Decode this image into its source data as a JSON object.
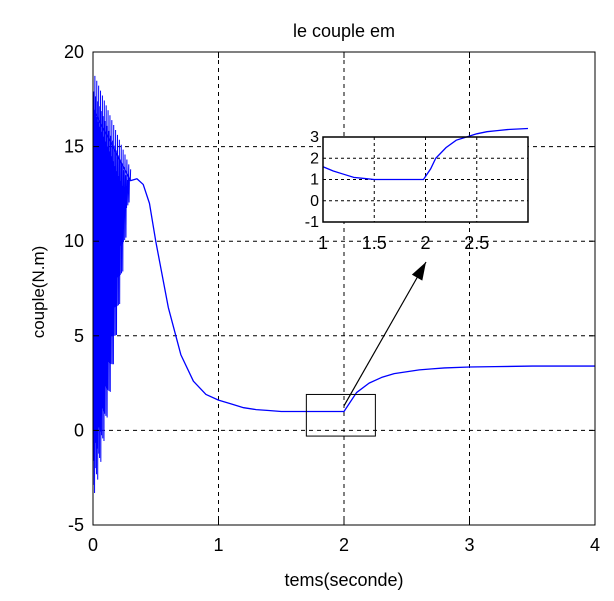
{
  "chart_data": {
    "type": "line",
    "title": "le couple em",
    "xlabel": "tems(seconde)",
    "ylabel": "couple(N.m)",
    "xlim": [
      0,
      4
    ],
    "ylim": [
      -5,
      20
    ],
    "x_ticks": [
      "0",
      "1",
      "2",
      "3",
      "4"
    ],
    "y_ticks": [
      "20",
      "15",
      "10",
      "5",
      "0",
      "-5"
    ],
    "grid": true,
    "line_color": "#0000ff",
    "series": [
      {
        "x": [
          0,
          0.3,
          0.35,
          0.4,
          0.45,
          0.5,
          0.6,
          0.7,
          0.8,
          0.9,
          1.0,
          1.1,
          1.2,
          1.3,
          1.4,
          1.5,
          1.6,
          1.7,
          1.8,
          1.9,
          2.0,
          2.05,
          2.1,
          2.2,
          2.3,
          2.4,
          2.5,
          2.6,
          2.7,
          2.8,
          3.0,
          3.2,
          3.5,
          4.0
        ],
        "y": [
          17.0,
          13.2,
          13.3,
          13.0,
          12.0,
          10.0,
          6.5,
          4.0,
          2.6,
          1.9,
          1.6,
          1.4,
          1.2,
          1.1,
          1.05,
          1.0,
          1.0,
          1.0,
          1.0,
          1.0,
          1.0,
          1.5,
          2.0,
          2.5,
          2.8,
          3.0,
          3.1,
          3.2,
          3.25,
          3.3,
          3.35,
          3.37,
          3.4,
          3.4
        ]
      }
    ],
    "oscillation": {
      "x_start": 0.0,
      "x_end": 0.3,
      "y_min": -3.5,
      "y_max": 19.0
    },
    "zoom_box": {
      "x": [
        1.7,
        2.25
      ],
      "y": [
        -0.3,
        1.9
      ]
    },
    "inset": {
      "xlim": [
        1,
        3
      ],
      "ylim": [
        -1,
        3
      ],
      "x_ticks": [
        "1",
        "1.5",
        "2",
        "2.5"
      ],
      "y_ticks": [
        "3",
        "2",
        "1",
        "0",
        "-1"
      ],
      "grid": true,
      "series": [
        {
          "x": [
            1.0,
            1.1,
            1.2,
            1.3,
            1.4,
            1.5,
            1.6,
            1.7,
            1.8,
            1.9,
            1.98,
            2.05,
            2.1,
            2.2,
            2.3,
            2.4,
            2.5,
            2.6,
            2.7,
            2.8,
            3.0
          ],
          "y": [
            1.6,
            1.4,
            1.25,
            1.1,
            1.05,
            1.0,
            1.0,
            1.0,
            1.0,
            1.0,
            1.0,
            1.5,
            2.0,
            2.5,
            2.85,
            3.0,
            3.15,
            3.25,
            3.3,
            3.35,
            3.4
          ]
        }
      ]
    }
  }
}
